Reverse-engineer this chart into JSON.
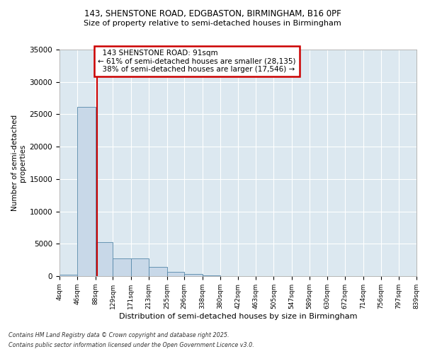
{
  "title_line1": "143, SHENSTONE ROAD, EDGBASTON, BIRMINGHAM, B16 0PF",
  "title_line2": "Size of property relative to semi-detached houses in Birmingham",
  "xlabel": "Distribution of semi-detached houses by size in Birmingham",
  "ylabel": "Number of semi-detached\nproperties",
  "property_label": "143 SHENSTONE ROAD: 91sqm",
  "pct_smaller": 61,
  "count_smaller": 28135,
  "pct_larger": 38,
  "count_larger": 17546,
  "bin_edges": [
    4,
    46,
    88,
    129,
    171,
    213,
    255,
    296,
    338,
    380,
    422,
    463,
    505,
    547,
    589,
    630,
    672,
    714,
    756,
    797,
    839
  ],
  "bin_labels": [
    "4sqm",
    "46sqm",
    "88sqm",
    "129sqm",
    "171sqm",
    "213sqm",
    "255sqm",
    "296sqm",
    "338sqm",
    "380sqm",
    "422sqm",
    "463sqm",
    "505sqm",
    "547sqm",
    "589sqm",
    "630sqm",
    "672sqm",
    "714sqm",
    "756sqm",
    "797sqm",
    "839sqm"
  ],
  "bar_heights": [
    200,
    26100,
    5200,
    2700,
    2700,
    1400,
    700,
    300,
    100,
    50,
    30,
    20,
    15,
    10,
    8,
    5,
    3,
    2,
    1,
    1
  ],
  "bar_color": "#c8d8e8",
  "bar_edge_color": "#5588aa",
  "vline_color": "#cc0000",
  "vline_x": 91,
  "annotation_box_color": "#cc0000",
  "background_color": "#dce8f0",
  "ylim": [
    0,
    35000
  ],
  "yticks": [
    0,
    5000,
    10000,
    15000,
    20000,
    25000,
    30000,
    35000
  ],
  "footer_line1": "Contains HM Land Registry data © Crown copyright and database right 2025.",
  "footer_line2": "Contains public sector information licensed under the Open Government Licence v3.0.",
  "fig_width": 6.0,
  "fig_height": 5.0
}
